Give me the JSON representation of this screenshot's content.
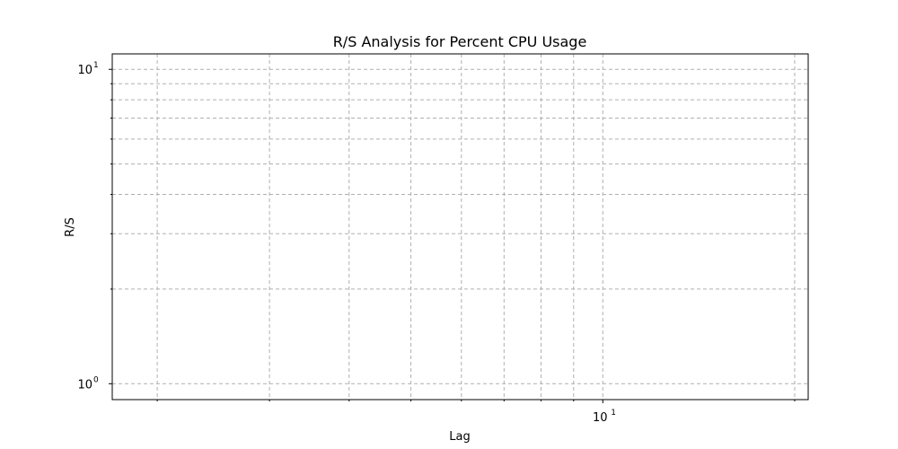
{
  "chart_data": {
    "type": "line",
    "title": "R/S Analysis for Percent CPU Usage",
    "xlabel": "Lag",
    "ylabel": "R/S",
    "x_scale": "log",
    "y_scale": "log",
    "xlim": [
      1.7,
      21
    ],
    "ylim": [
      0.89,
      11.2
    ],
    "grid": true,
    "x_major_ticks": [
      {
        "value": 10,
        "base": "10",
        "exp": "1"
      }
    ],
    "y_major_ticks": [
      {
        "value": 1,
        "base": "10",
        "exp": "0"
      },
      {
        "value": 10,
        "base": "10",
        "exp": "1"
      }
    ],
    "x_minor_ticks": [
      2,
      3,
      4,
      5,
      6,
      7,
      8,
      9,
      20
    ],
    "y_minor_ticks": [
      2,
      3,
      4,
      5,
      6,
      7,
      8,
      9
    ],
    "series": []
  }
}
